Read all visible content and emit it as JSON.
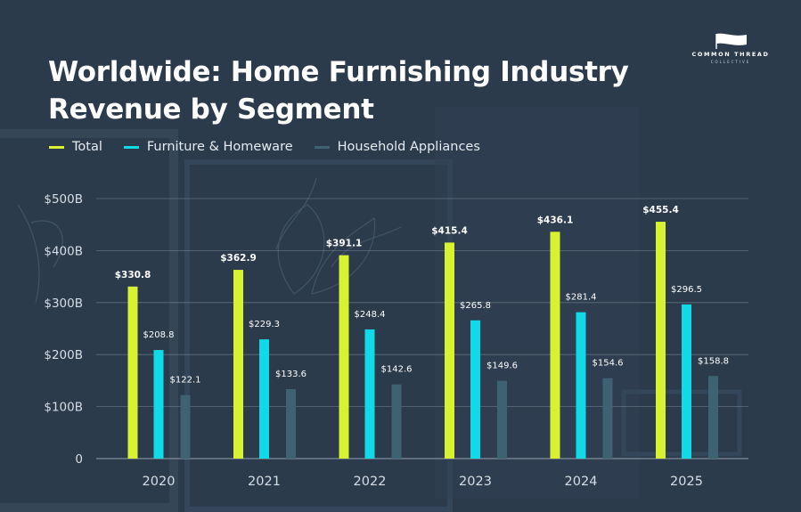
{
  "title_line1": "Worldwide: Home Furnishing Industry",
  "title_line2": "Revenue by Segment",
  "logo": {
    "name": "COMMON THREAD",
    "sub": "COLLECTIVE",
    "icon": "flag-icon"
  },
  "colors": {
    "total": "#d8f232",
    "furniture": "#10d9e8",
    "appliances": "#3e6272",
    "grid": "#8a97a5",
    "axis_text": "#d6dde4",
    "background": "#2c3b4c"
  },
  "chart_data": {
    "type": "bar",
    "title": "Worldwide: Home Furnishing Industry Revenue by Segment",
    "categories": [
      "2020",
      "2021",
      "2022",
      "2023",
      "2024",
      "2025"
    ],
    "series": [
      {
        "name": "Total",
        "values": [
          330.8,
          362.9,
          391.1,
          415.4,
          436.1,
          455.4
        ],
        "labels": [
          "$330.8",
          "$362.9",
          "$391.1",
          "$415.4",
          "$436.1",
          "$455.4"
        ]
      },
      {
        "name": "Furniture & Homeware",
        "values": [
          208.8,
          229.3,
          248.4,
          265.8,
          281.4,
          296.5
        ],
        "labels": [
          "$208.8",
          "$229.3",
          "$248.4",
          "$265.8",
          "$281.4",
          "$296.5"
        ]
      },
      {
        "name": "Household Appliances",
        "values": [
          122.1,
          133.6,
          142.6,
          149.6,
          154.6,
          158.8
        ],
        "labels": [
          "$122.1",
          "$133.6",
          "$142.6",
          "$149.6",
          "$154.6",
          "$158.8"
        ]
      }
    ],
    "yticks": [
      0,
      100,
      200,
      300,
      400,
      500
    ],
    "ytick_labels": [
      "0",
      "$100B",
      "$200B",
      "$300B",
      "$400B",
      "$500B"
    ],
    "ylim": [
      0,
      500
    ],
    "xlabel": "",
    "ylabel": "",
    "grid": true,
    "legend": "top-left"
  }
}
